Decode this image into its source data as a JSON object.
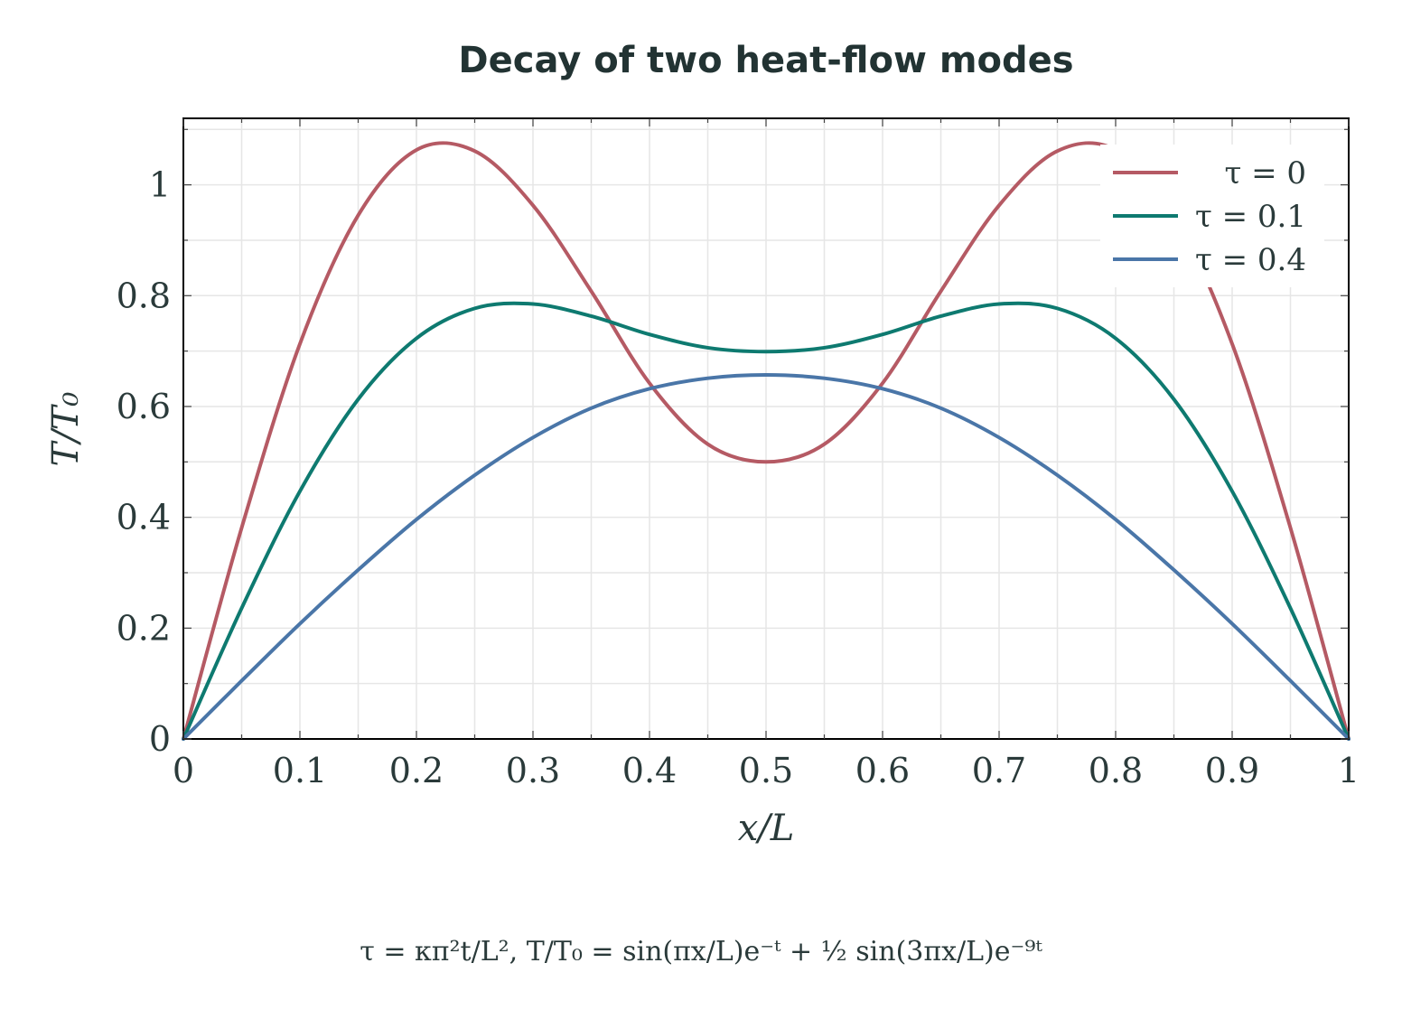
{
  "chart_data": {
    "type": "line",
    "title": "Decay of two heat-flow modes",
    "xlabel": "x/L",
    "ylabel": "T/T₀",
    "xlim": [
      0,
      1
    ],
    "ylim": [
      0,
      1.12
    ],
    "xticks": [
      0,
      0.1,
      0.2,
      0.3,
      0.4,
      0.5,
      0.6,
      0.7,
      0.8,
      0.9,
      1
    ],
    "xtick_labels": [
      "0",
      "0.1",
      "0.2",
      "0.3",
      "0.4",
      "0.5",
      "0.6",
      "0.7",
      "0.8",
      "0.9",
      "1"
    ],
    "yticks": [
      0,
      0.2,
      0.4,
      0.6,
      0.8,
      1
    ],
    "ytick_labels": [
      "0",
      "0.2",
      "0.4",
      "0.6",
      "0.8",
      "1"
    ],
    "grid": true,
    "legend_position": "top-right",
    "x": [
      0,
      0.05,
      0.1,
      0.15,
      0.2,
      0.25,
      0.3,
      0.35,
      0.4,
      0.45,
      0.5,
      0.55,
      0.6,
      0.65,
      0.7,
      0.75,
      0.8,
      0.85,
      0.9,
      0.95,
      1
    ],
    "series": [
      {
        "name": "τ = 0",
        "color": "#b55a64",
        "values": [
          0,
          0.381,
          0.713,
          0.945,
          1.063,
          1.061,
          0.963,
          0.808,
          0.642,
          0.532,
          0.5,
          0.532,
          0.642,
          0.808,
          0.963,
          1.061,
          1.063,
          0.945,
          0.713,
          0.381,
          0
        ]
      },
      {
        "name": "τ = 0.1",
        "color": "#0e7a70",
        "values": [
          0,
          0.236,
          0.447,
          0.613,
          0.723,
          0.777,
          0.785,
          0.763,
          0.73,
          0.706,
          0.699,
          0.706,
          0.73,
          0.763,
          0.785,
          0.777,
          0.723,
          0.613,
          0.447,
          0.236,
          0
        ]
      },
      {
        "name": "τ = 0.4",
        "color": "#4a76a8",
        "values": [
          0,
          0.105,
          0.208,
          0.305,
          0.396,
          0.476,
          0.544,
          0.597,
          0.632,
          0.651,
          0.657,
          0.651,
          0.632,
          0.597,
          0.544,
          0.476,
          0.396,
          0.305,
          0.208,
          0.105,
          0
        ]
      }
    ],
    "annotation": "τ = κπ²t/L²,      T/T₀ = sin(πx/L)e⁻ᵗ + ½ sin(3πx/L)e⁻⁹ᵗ"
  }
}
